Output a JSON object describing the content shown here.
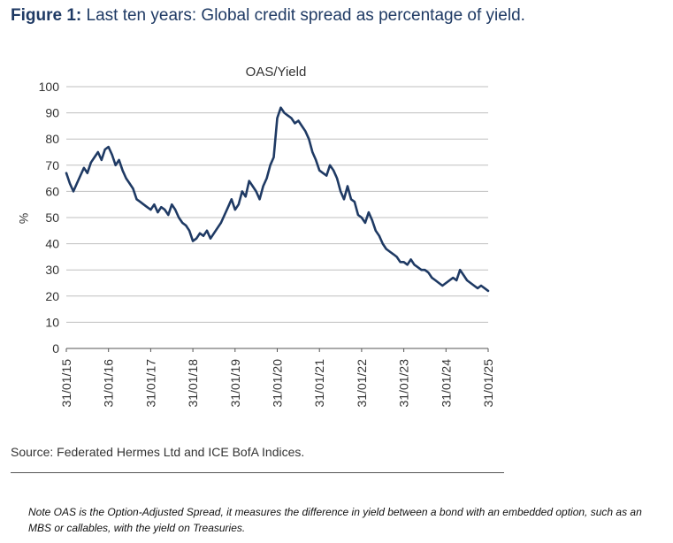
{
  "figure": {
    "label": "Figure 1:",
    "title": "Last ten years: Global credit spread as percentage of yield."
  },
  "source": "Source: Federated Hermes Ltd and ICE BofA Indices.",
  "note": "Note OAS is the Option-Adjusted Spread, it measures the difference in yield between a bond with an embedded option, such as an MBS or callables, with the yield on Treasuries.",
  "colors": {
    "line": "#1f3a64",
    "grid": "#bfbfbf",
    "axis": "#555555",
    "title": "#1f3a64"
  },
  "chart_data": {
    "type": "line",
    "title": "OAS/Yield",
    "ylabel": "%",
    "xlabel": "",
    "ylim": [
      0,
      100
    ],
    "yticks": [
      0,
      10,
      20,
      30,
      40,
      50,
      60,
      70,
      80,
      90,
      100
    ],
    "xlim": [
      "31/01/15",
      "31/01/25"
    ],
    "xtick_labels": [
      "31/01/15",
      "31/01/16",
      "31/01/17",
      "31/01/18",
      "31/01/19",
      "31/01/20",
      "31/01/21",
      "31/01/22",
      "31/01/23",
      "31/01/24",
      "31/01/25"
    ],
    "grid": true,
    "legend": "none",
    "series": [
      {
        "x": [
          "2015-01",
          "2015-02",
          "2015-03",
          "2015-04",
          "2015-05",
          "2015-06",
          "2015-07",
          "2015-08",
          "2015-09",
          "2015-10",
          "2015-11",
          "2015-12",
          "2016-01",
          "2016-02",
          "2016-03",
          "2016-04",
          "2016-05",
          "2016-06",
          "2016-07",
          "2016-08",
          "2016-09",
          "2016-10",
          "2016-11",
          "2016-12",
          "2017-01",
          "2017-02",
          "2017-03",
          "2017-04",
          "2017-05",
          "2017-06",
          "2017-07",
          "2017-08",
          "2017-09",
          "2017-10",
          "2017-11",
          "2017-12",
          "2018-01",
          "2018-02",
          "2018-03",
          "2018-04",
          "2018-05",
          "2018-06",
          "2018-07",
          "2018-08",
          "2018-09",
          "2018-10",
          "2018-11",
          "2018-12",
          "2019-01",
          "2019-02",
          "2019-03",
          "2019-04",
          "2019-05",
          "2019-06",
          "2019-07",
          "2019-08",
          "2019-09",
          "2019-10",
          "2019-11",
          "2019-12",
          "2020-01",
          "2020-02",
          "2020-03",
          "2020-04",
          "2020-05",
          "2020-06",
          "2020-07",
          "2020-08",
          "2020-09",
          "2020-10",
          "2020-11",
          "2020-12",
          "2021-01",
          "2021-02",
          "2021-03",
          "2021-04",
          "2021-05",
          "2021-06",
          "2021-07",
          "2021-08",
          "2021-09",
          "2021-10",
          "2021-11",
          "2021-12",
          "2022-01",
          "2022-02",
          "2022-03",
          "2022-04",
          "2022-05",
          "2022-06",
          "2022-07",
          "2022-08",
          "2022-09",
          "2022-10",
          "2022-11",
          "2022-12",
          "2023-01",
          "2023-02",
          "2023-03",
          "2023-04",
          "2023-05",
          "2023-06",
          "2023-07",
          "2023-08",
          "2023-09",
          "2023-10",
          "2023-11",
          "2023-12",
          "2024-01",
          "2024-02",
          "2024-03",
          "2024-04",
          "2024-05",
          "2024-06",
          "2024-07",
          "2024-08",
          "2024-09",
          "2024-10",
          "2024-11",
          "2024-12",
          "2025-01"
        ],
        "values": [
          67,
          63,
          60,
          63,
          66,
          69,
          67,
          71,
          73,
          75,
          72,
          76,
          77,
          74,
          70,
          72,
          68,
          65,
          63,
          61,
          57,
          56,
          55,
          54,
          53,
          55,
          52,
          54,
          53,
          51,
          55,
          53,
          50,
          48,
          47,
          45,
          41,
          42,
          44,
          43,
          45,
          42,
          44,
          46,
          48,
          51,
          54,
          57,
          53,
          55,
          60,
          58,
          64,
          62,
          60,
          57,
          62,
          65,
          70,
          73,
          88,
          92,
          90,
          89,
          88,
          86,
          87,
          85,
          83,
          80,
          75,
          72,
          68,
          67,
          66,
          70,
          68,
          65,
          60,
          57,
          62,
          57,
          56,
          51,
          50,
          48,
          52,
          49,
          45,
          43,
          40,
          38,
          37,
          36,
          35,
          33,
          33,
          32,
          34,
          32,
          31,
          30,
          30,
          29,
          27,
          26,
          25,
          24,
          25,
          26,
          27,
          26,
          30,
          28,
          26,
          25,
          24,
          23,
          24,
          23,
          22
        ]
      }
    ]
  }
}
